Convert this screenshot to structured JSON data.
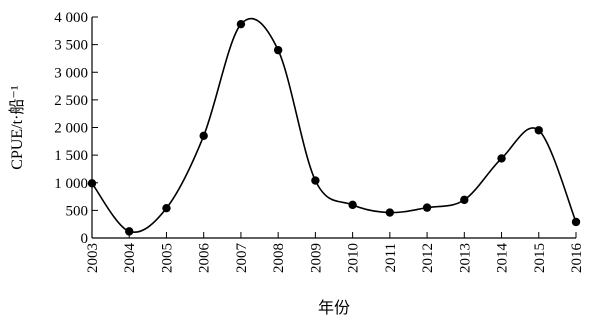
{
  "chart_data": {
    "type": "line",
    "title": "",
    "xlabel": "年份",
    "ylabel": "CPUE/t·船⁻¹",
    "x": [
      "2003",
      "2004",
      "2005",
      "2006",
      "2007",
      "2008",
      "2009",
      "2010",
      "2011",
      "2012",
      "2013",
      "2014",
      "2015",
      "2016"
    ],
    "series": [
      {
        "values": [
          990,
          120,
          540,
          1850,
          3870,
          3400,
          1040,
          600,
          460,
          550,
          690,
          1440,
          1950,
          290
        ]
      }
    ],
    "ylim": [
      0,
      4000
    ],
    "yticks": [
      0,
      500,
      1000,
      1500,
      2000,
      2500,
      3000,
      3500,
      4000
    ],
    "ytick_labels": [
      "0",
      "500",
      "1 000",
      "1 500",
      "2 000",
      "2 500",
      "3 000",
      "3 500",
      "4 000"
    ],
    "grid": false,
    "smooth": true,
    "line_color": "#000000",
    "marker_color": "#000000"
  }
}
